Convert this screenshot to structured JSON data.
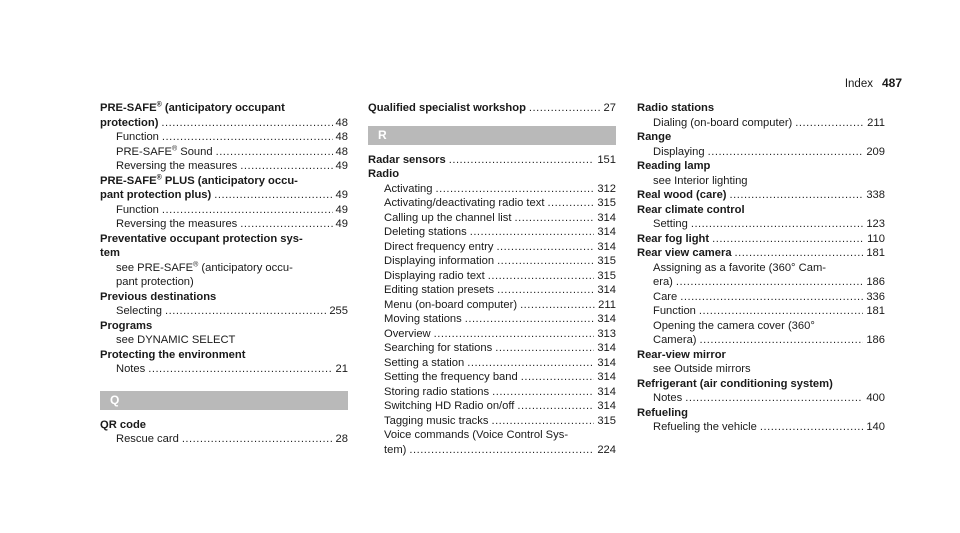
{
  "header": {
    "title": "Index",
    "page": "487"
  },
  "col1": {
    "e1a": "PRE-SAFE",
    "e1b": "® (anticipatory occupant",
    "e2": "protection)",
    "e2p": "48",
    "e3": "Function",
    "e3p": "48",
    "e4a": "PRE-SAFE",
    "e4b": "® Sound",
    "e4p": "48",
    "e5": "Reversing the measures",
    "e5p": "49",
    "e6a": "PRE-SAFE",
    "e6b": "® PLUS (anticipatory occu-",
    "e7": "pant protection plus)",
    "e7p": "49",
    "e8": "Function",
    "e8p": "49",
    "e9": "Reversing the measures",
    "e9p": "49",
    "e10": "Preventative occupant protection sys-",
    "e11": "tem",
    "e12a": "see PRE-SAFE",
    "e12b": "® (anticipatory occu-",
    "e13": "pant protection)",
    "e14": "Previous destinations",
    "e15": "Selecting",
    "e15p": "255",
    "e16": "Programs",
    "e17": "see DYNAMIC SELECT",
    "e18": "Protecting the environment",
    "e19": "Notes",
    "e19p": "21",
    "barQ": "Q",
    "e20": "QR code",
    "e21": "Rescue card",
    "e21p": "28"
  },
  "col2": {
    "e1": "Qualified specialist workshop",
    "e1p": "27",
    "barR": "R",
    "e2": "Radar sensors",
    "e2p": "151",
    "e3": "Radio",
    "items": [
      {
        "t": "Activating",
        "p": "312"
      },
      {
        "t": "Activating/deactivating radio text",
        "p": "315"
      },
      {
        "t": "Calling up the channel list",
        "p": "314"
      },
      {
        "t": "Deleting stations",
        "p": "314"
      },
      {
        "t": "Direct frequency entry",
        "p": "314"
      },
      {
        "t": "Displaying information",
        "p": "315"
      },
      {
        "t": "Displaying radio text",
        "p": "315"
      },
      {
        "t": "Editing station presets",
        "p": "314"
      },
      {
        "t": "Menu (on-board computer)",
        "p": "211"
      },
      {
        "t": "Moving stations",
        "p": "314"
      },
      {
        "t": "Overview",
        "p": "313"
      },
      {
        "t": "Searching for stations",
        "p": "314"
      },
      {
        "t": "Setting a station",
        "p": "314"
      },
      {
        "t": "Setting the frequency band",
        "p": "314"
      },
      {
        "t": "Storing radio stations",
        "p": "314"
      },
      {
        "t": "Switching HD Radio on/off",
        "p": "314"
      },
      {
        "t": "Tagging music tracks",
        "p": "315"
      }
    ],
    "e4": "Voice commands (Voice Control Sys-",
    "e5": "tem)",
    "e5p": "224"
  },
  "col3": {
    "e1": "Radio stations",
    "e2": "Dialing (on-board computer)",
    "e2p": "211",
    "e3": "Range",
    "e4": "Displaying",
    "e4p": "209",
    "e5": "Reading lamp",
    "e6": "see Interior lighting",
    "e7": "Real wood (care)",
    "e7p": "338",
    "e8": "Rear climate control",
    "e9": "Setting",
    "e9p": "123",
    "e10": "Rear fog light",
    "e10p": "110",
    "e11": "Rear view camera",
    "e11p": "181",
    "e12": "Assigning as a favorite (360° Cam-",
    "e13": "era)",
    "e13p": "186",
    "e14": "Care",
    "e14p": "336",
    "e15": "Function",
    "e15p": "181",
    "e16": "Opening the camera cover (360°",
    "e17": "Camera)",
    "e17p": "186",
    "e18": "Rear-view mirror",
    "e19": "see Outside mirrors",
    "e20": "Refrigerant (air conditioning system)",
    "e21": "Notes",
    "e21p": "400",
    "e22": "Refueling",
    "e23": "Refueling the vehicle",
    "e23p": "140"
  }
}
